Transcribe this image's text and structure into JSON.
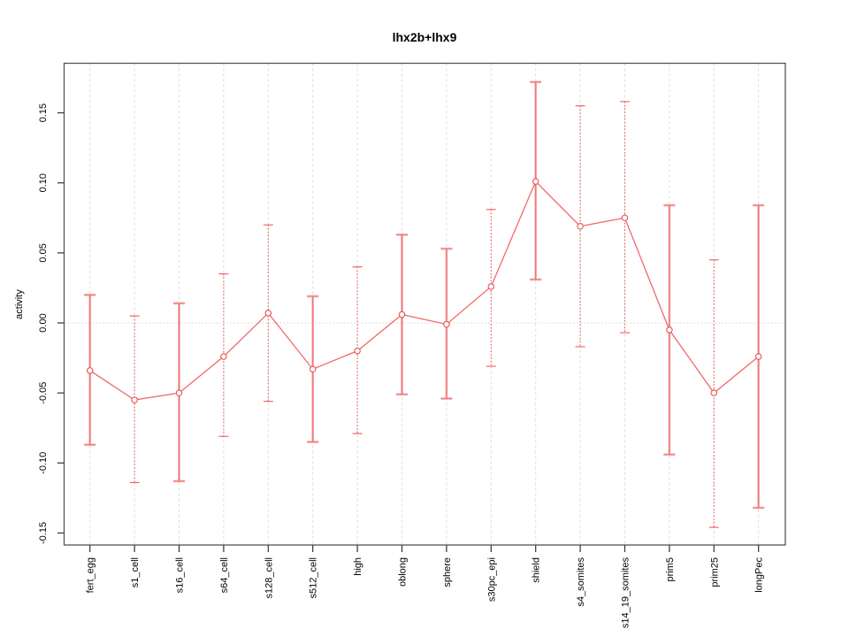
{
  "chart": {
    "title": "lhx2b+lhx9",
    "ylabel": "activity"
  },
  "chart_data": {
    "type": "line",
    "title": "lhx2b+lhx9",
    "xlabel": "",
    "ylabel": "activity",
    "categories": [
      "fert_egg",
      "s1_cell",
      "s16_cell",
      "s64_cell",
      "s128_cell",
      "s512_cell",
      "high",
      "oblong",
      "sphere",
      "s30pc_epi",
      "shield",
      "s4_somites",
      "s14_19_somites",
      "prim5",
      "prim25",
      "longPec"
    ],
    "series": [
      {
        "name": "activity",
        "values": [
          -0.034,
          -0.055,
          -0.05,
          -0.024,
          0.007,
          -0.033,
          -0.02,
          0.006,
          -0.001,
          0.026,
          0.101,
          0.069,
          0.075,
          -0.005,
          -0.05,
          -0.024
        ],
        "error_low": [
          -0.087,
          -0.114,
          -0.113,
          -0.081,
          -0.056,
          -0.085,
          -0.079,
          -0.051,
          -0.054,
          -0.031,
          0.031,
          -0.017,
          -0.007,
          -0.094,
          -0.146,
          -0.132
        ],
        "error_high": [
          0.02,
          0.005,
          0.014,
          0.035,
          0.07,
          0.019,
          0.04,
          0.063,
          0.053,
          0.081,
          0.172,
          0.155,
          0.158,
          0.084,
          0.045,
          0.084
        ]
      }
    ],
    "error_bar_styles": [
      "solid",
      "dotted",
      "solid",
      "dotted",
      "dotted",
      "solid",
      "dotted",
      "solid",
      "solid",
      "dotted",
      "solid",
      "dotted",
      "dotted",
      "solid",
      "dotted",
      "solid"
    ],
    "yticks": [
      "0.15",
      "0.10",
      "0.05",
      "0.00",
      "-0.05",
      "-0.10",
      "-0.15"
    ],
    "ytick_values": [
      0.15,
      0.1,
      0.05,
      0.0,
      -0.05,
      -0.1,
      -0.15
    ],
    "ylim": [
      -0.159,
      0.185
    ],
    "grid": "vertical dashed gridline at each category; dotted horizontal line at zero",
    "legend": "none",
    "marker": "open-circle",
    "colors": {
      "line": "#f16a6a",
      "marker_stroke": "#e65252",
      "marker_fill": "#ffffff",
      "error_bar_solid": "#f6abab",
      "error_bar_core": "#e85e5e",
      "error_bar_dotted": "#ee5c5c",
      "gridline": "#dcdcdc",
      "zero_line": "#d0d0d0",
      "box": "#555555",
      "tick": "#333333",
      "text": "#000000"
    }
  }
}
